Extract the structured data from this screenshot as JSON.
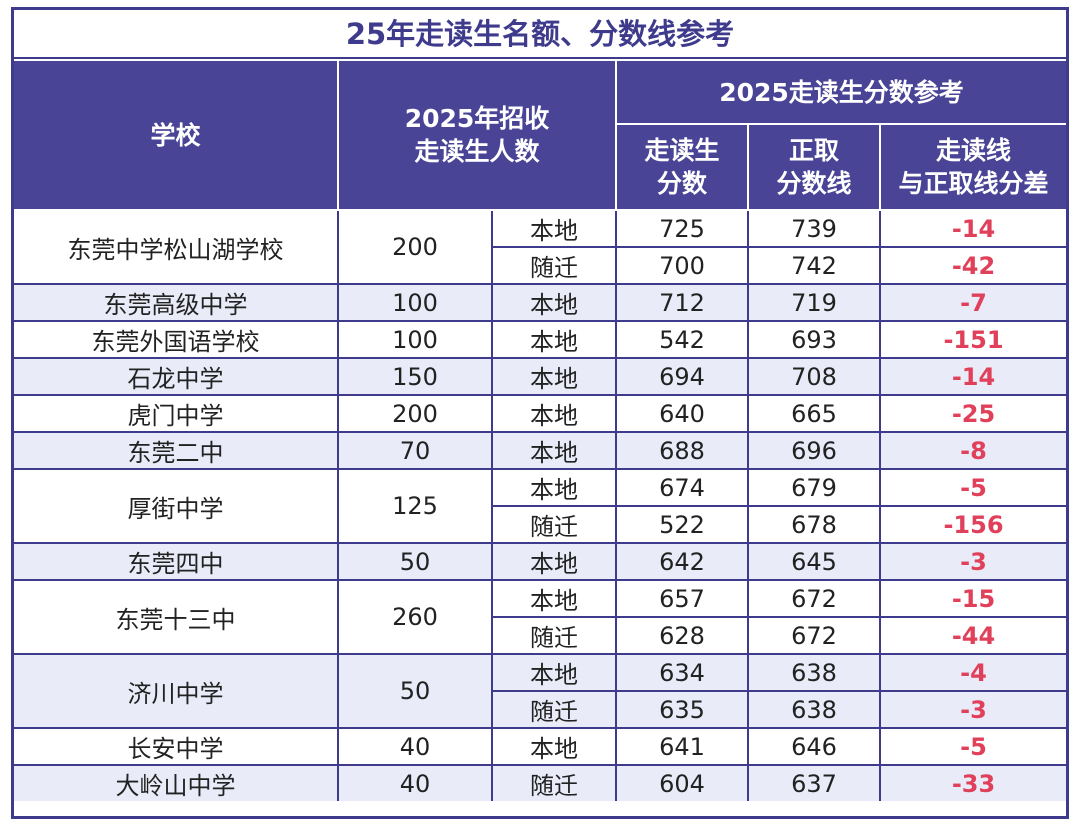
{
  "title": "25年走读生名额、分数线参考",
  "headers": {
    "school": "学校",
    "quota_line1": "2025年招收",
    "quota_line2": "走读生人数",
    "score_group": "2025走读生分数参考",
    "day_score_line1": "走读生",
    "day_score_line2": "分数",
    "regular_line1": "正取",
    "regular_line2": "分数线",
    "diff_line1": "走读线",
    "diff_line2": "与正取线分差"
  },
  "schools": [
    {
      "name": "东莞中学松山湖学校",
      "quota": "200",
      "alt": false,
      "rows": [
        {
          "type": "本地",
          "day_score": "725",
          "regular": "739",
          "diff": "-14"
        },
        {
          "type": "随迁",
          "day_score": "700",
          "regular": "742",
          "diff": "-42"
        }
      ]
    },
    {
      "name": "东莞高级中学",
      "quota": "100",
      "alt": true,
      "rows": [
        {
          "type": "本地",
          "day_score": "712",
          "regular": "719",
          "diff": "-7"
        }
      ]
    },
    {
      "name": "东莞外国语学校",
      "quota": "100",
      "alt": false,
      "rows": [
        {
          "type": "本地",
          "day_score": "542",
          "regular": "693",
          "diff": "-151"
        }
      ]
    },
    {
      "name": "石龙中学",
      "quota": "150",
      "alt": true,
      "rows": [
        {
          "type": "本地",
          "day_score": "694",
          "regular": "708",
          "diff": "-14"
        }
      ]
    },
    {
      "name": "虎门中学",
      "quota": "200",
      "alt": false,
      "rows": [
        {
          "type": "本地",
          "day_score": "640",
          "regular": "665",
          "diff": "-25"
        }
      ]
    },
    {
      "name": "东莞二中",
      "quota": "70",
      "alt": true,
      "rows": [
        {
          "type": "本地",
          "day_score": "688",
          "regular": "696",
          "diff": "-8"
        }
      ]
    },
    {
      "name": "厚街中学",
      "quota": "125",
      "alt": false,
      "rows": [
        {
          "type": "本地",
          "day_score": "674",
          "regular": "679",
          "diff": "-5"
        },
        {
          "type": "随迁",
          "day_score": "522",
          "regular": "678",
          "diff": "-156"
        }
      ]
    },
    {
      "name": "东莞四中",
      "quota": "50",
      "alt": true,
      "rows": [
        {
          "type": "本地",
          "day_score": "642",
          "regular": "645",
          "diff": "-3"
        }
      ]
    },
    {
      "name": "东莞十三中",
      "quota": "260",
      "alt": false,
      "rows": [
        {
          "type": "本地",
          "day_score": "657",
          "regular": "672",
          "diff": "-15"
        },
        {
          "type": "随迁",
          "day_score": "628",
          "regular": "672",
          "diff": "-44"
        }
      ]
    },
    {
      "name": "济川中学",
      "quota": "50",
      "alt": true,
      "rows": [
        {
          "type": "本地",
          "day_score": "634",
          "regular": "638",
          "diff": "-4"
        },
        {
          "type": "随迁",
          "day_score": "635",
          "regular": "638",
          "diff": "-3"
        }
      ]
    },
    {
      "name": "长安中学",
      "quota": "40",
      "alt": false,
      "rows": [
        {
          "type": "本地",
          "day_score": "641",
          "regular": "646",
          "diff": "-5"
        }
      ]
    },
    {
      "name": "大岭山中学",
      "quota": "40",
      "alt": true,
      "rows": [
        {
          "type": "随迁",
          "day_score": "604",
          "regular": "637",
          "diff": "-33"
        }
      ]
    }
  ],
  "colors": {
    "header_bg": "#4a4496",
    "border": "#3f3b8c",
    "alt_row": "#e9ecf8",
    "diff_text": "#e0405a"
  }
}
